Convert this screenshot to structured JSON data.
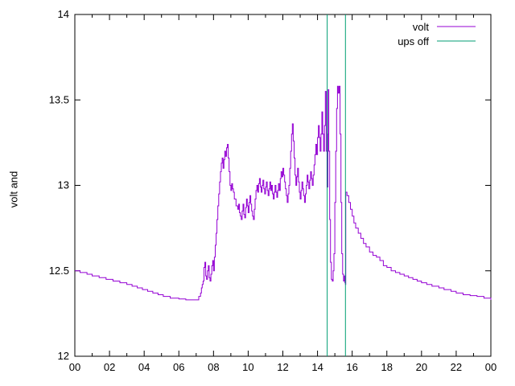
{
  "chart_data": {
    "type": "line",
    "title": "",
    "xlabel": "",
    "ylabel": "volt and",
    "xlim": [
      0,
      24
    ],
    "ylim": [
      12,
      14
    ],
    "grid": false,
    "legend_position": "top-right-inside",
    "background_color": "#ffffff",
    "border_color": "#000000",
    "x_tick_hours": [
      0,
      2,
      4,
      6,
      8,
      10,
      12,
      14,
      16,
      18,
      20,
      22,
      24
    ],
    "x_tick_labels": [
      "00",
      "02",
      "04",
      "06",
      "08",
      "10",
      "12",
      "14",
      "16",
      "18",
      "20",
      "22",
      "00"
    ],
    "x_minor_tick_hours": [
      1,
      3,
      5,
      7,
      9,
      11,
      13,
      15,
      17,
      19,
      21,
      23
    ],
    "y_ticks": [
      12,
      12.5,
      13,
      13.5,
      14
    ],
    "y_tick_labels": [
      "12",
      "12.5",
      "13",
      "13.5",
      "14"
    ],
    "series": [
      {
        "name": "volt",
        "color": "#9400d3",
        "style": "line",
        "points": [
          [
            0.0,
            12.5
          ],
          [
            0.3,
            12.49
          ],
          [
            0.7,
            12.48
          ],
          [
            1.0,
            12.47
          ],
          [
            1.4,
            12.46
          ],
          [
            1.8,
            12.45
          ],
          [
            2.2,
            12.44
          ],
          [
            2.6,
            12.43
          ],
          [
            3.0,
            12.42
          ],
          [
            3.3,
            12.41
          ],
          [
            3.6,
            12.4
          ],
          [
            3.9,
            12.39
          ],
          [
            4.2,
            12.38
          ],
          [
            4.5,
            12.37
          ],
          [
            4.8,
            12.36
          ],
          [
            5.1,
            12.35
          ],
          [
            5.5,
            12.34
          ],
          [
            6.0,
            12.335
          ],
          [
            6.4,
            12.33
          ],
          [
            7.1,
            12.33
          ],
          [
            7.15,
            12.35
          ],
          [
            7.25,
            12.37
          ],
          [
            7.3,
            12.4
          ],
          [
            7.35,
            12.42
          ],
          [
            7.4,
            12.44
          ],
          [
            7.45,
            12.52
          ],
          [
            7.5,
            12.55
          ],
          [
            7.55,
            12.47
          ],
          [
            7.6,
            12.45
          ],
          [
            7.65,
            12.5
          ],
          [
            7.7,
            12.53
          ],
          [
            7.75,
            12.46
          ],
          [
            7.8,
            12.44
          ],
          [
            7.85,
            12.48
          ],
          [
            7.9,
            12.53
          ],
          [
            7.95,
            12.56
          ],
          [
            8.0,
            12.5
          ],
          [
            8.05,
            12.58
          ],
          [
            8.1,
            12.65
          ],
          [
            8.15,
            12.72
          ],
          [
            8.2,
            12.8
          ],
          [
            8.25,
            12.88
          ],
          [
            8.3,
            12.95
          ],
          [
            8.35,
            13.02
          ],
          [
            8.4,
            13.08
          ],
          [
            8.45,
            13.13
          ],
          [
            8.5,
            13.16
          ],
          [
            8.55,
            13.1
          ],
          [
            8.6,
            13.15
          ],
          [
            8.65,
            13.2
          ],
          [
            8.7,
            13.17
          ],
          [
            8.75,
            13.22
          ],
          [
            8.8,
            13.24
          ],
          [
            8.85,
            13.16
          ],
          [
            8.9,
            13.08
          ],
          [
            8.95,
            13.0
          ],
          [
            9.0,
            12.97
          ],
          [
            9.05,
            13.01
          ],
          [
            9.1,
            12.98
          ],
          [
            9.15,
            12.96
          ],
          [
            9.2,
            12.92
          ],
          [
            9.3,
            12.88
          ],
          [
            9.4,
            12.86
          ],
          [
            9.45,
            12.89
          ],
          [
            9.5,
            12.84
          ],
          [
            9.55,
            12.82
          ],
          [
            9.6,
            12.8
          ],
          [
            9.65,
            12.85
          ],
          [
            9.7,
            12.89
          ],
          [
            9.75,
            12.83
          ],
          [
            9.8,
            12.81
          ],
          [
            9.85,
            12.87
          ],
          [
            9.9,
            12.92
          ],
          [
            9.95,
            12.88
          ],
          [
            10.0,
            12.84
          ],
          [
            10.05,
            12.9
          ],
          [
            10.1,
            12.94
          ],
          [
            10.15,
            12.89
          ],
          [
            10.2,
            12.85
          ],
          [
            10.25,
            12.82
          ],
          [
            10.3,
            12.8
          ],
          [
            10.35,
            12.86
          ],
          [
            10.4,
            12.92
          ],
          [
            10.45,
            12.97
          ],
          [
            10.5,
            13.0
          ],
          [
            10.55,
            12.96
          ],
          [
            10.6,
            13.01
          ],
          [
            10.65,
            13.04
          ],
          [
            10.7,
            12.99
          ],
          [
            10.75,
            12.96
          ],
          [
            10.8,
            13.0
          ],
          [
            10.85,
            13.03
          ],
          [
            10.9,
            12.98
          ],
          [
            10.95,
            12.95
          ],
          [
            11.0,
            12.99
          ],
          [
            11.05,
            13.02
          ],
          [
            11.1,
            12.97
          ],
          [
            11.15,
            12.94
          ],
          [
            11.2,
            12.98
          ],
          [
            11.25,
            13.02
          ],
          [
            11.3,
            12.97
          ],
          [
            11.35,
            13.0
          ],
          [
            11.4,
            12.95
          ],
          [
            11.45,
            12.92
          ],
          [
            11.5,
            12.96
          ],
          [
            11.55,
            13.0
          ],
          [
            11.6,
            12.96
          ],
          [
            11.65,
            12.93
          ],
          [
            11.7,
            12.97
          ],
          [
            11.75,
            13.01
          ],
          [
            11.8,
            12.97
          ],
          [
            11.85,
            13.04
          ],
          [
            11.9,
            13.08
          ],
          [
            11.95,
            13.05
          ],
          [
            12.0,
            13.1
          ],
          [
            12.05,
            13.06
          ],
          [
            12.1,
            13.02
          ],
          [
            12.15,
            12.98
          ],
          [
            12.2,
            12.94
          ],
          [
            12.25,
            12.9
          ],
          [
            12.3,
            12.95
          ],
          [
            12.35,
            13.0
          ],
          [
            12.4,
            13.1
          ],
          [
            12.45,
            13.2
          ],
          [
            12.5,
            13.3
          ],
          [
            12.55,
            13.36
          ],
          [
            12.6,
            13.26
          ],
          [
            12.65,
            13.16
          ],
          [
            12.7,
            13.06
          ],
          [
            12.75,
            13.0
          ],
          [
            12.8,
            13.05
          ],
          [
            12.85,
            13.1
          ],
          [
            12.9,
            13.02
          ],
          [
            12.95,
            12.96
          ],
          [
            13.0,
            12.92
          ],
          [
            13.05,
            12.97
          ],
          [
            13.1,
            13.02
          ],
          [
            13.15,
            12.98
          ],
          [
            13.2,
            12.94
          ],
          [
            13.25,
            12.9
          ],
          [
            13.3,
            12.95
          ],
          [
            13.35,
            13.0
          ],
          [
            13.4,
            13.06
          ],
          [
            13.45,
            13.02
          ],
          [
            13.5,
            12.98
          ],
          [
            13.55,
            13.03
          ],
          [
            13.6,
            13.08
          ],
          [
            13.65,
            13.04
          ],
          [
            13.7,
            13.0
          ],
          [
            13.75,
            13.06
          ],
          [
            13.8,
            13.12
          ],
          [
            13.85,
            13.18
          ],
          [
            13.9,
            13.24
          ],
          [
            13.95,
            13.18
          ],
          [
            14.0,
            13.28
          ],
          [
            14.05,
            13.35
          ],
          [
            14.1,
            13.28
          ],
          [
            14.15,
            13.2
          ],
          [
            14.2,
            13.3
          ],
          [
            14.25,
            13.43
          ],
          [
            14.3,
            13.3
          ],
          [
            14.35,
            13.2
          ],
          [
            14.4,
            13.35
          ],
          [
            14.45,
            13.55
          ],
          [
            14.5,
            13.2
          ],
          [
            14.55,
            12.99
          ],
          [
            14.6,
            13.3
          ],
          [
            14.62,
            13.56
          ],
          [
            14.65,
            13.2
          ],
          [
            14.7,
            12.8
          ],
          [
            14.75,
            12.55
          ],
          [
            14.8,
            12.45
          ],
          [
            14.85,
            12.44
          ],
          [
            14.9,
            12.5
          ],
          [
            14.95,
            12.6
          ],
          [
            15.0,
            12.9
          ],
          [
            15.05,
            13.2
          ],
          [
            15.1,
            13.45
          ],
          [
            15.15,
            13.58
          ],
          [
            15.2,
            13.54
          ],
          [
            15.25,
            13.58
          ],
          [
            15.3,
            13.3
          ],
          [
            15.35,
            12.9
          ],
          [
            15.4,
            12.6
          ],
          [
            15.45,
            12.48
          ],
          [
            15.5,
            12.44
          ],
          [
            15.55,
            12.47
          ],
          [
            15.58,
            12.43
          ],
          [
            15.61,
            12.42
          ],
          [
            15.63,
            12.96
          ],
          [
            15.7,
            12.94
          ],
          [
            15.8,
            12.9
          ],
          [
            15.9,
            12.86
          ],
          [
            16.0,
            12.82
          ],
          [
            16.1,
            12.78
          ],
          [
            16.2,
            12.75
          ],
          [
            16.35,
            12.72
          ],
          [
            16.5,
            12.69
          ],
          [
            16.65,
            12.66
          ],
          [
            16.8,
            12.64
          ],
          [
            17.0,
            12.61
          ],
          [
            17.2,
            12.59
          ],
          [
            17.4,
            12.58
          ],
          [
            17.6,
            12.56
          ],
          [
            17.8,
            12.53
          ],
          [
            18.0,
            12.52
          ],
          [
            18.25,
            12.5
          ],
          [
            18.5,
            12.49
          ],
          [
            18.75,
            12.48
          ],
          [
            19.0,
            12.47
          ],
          [
            19.25,
            12.46
          ],
          [
            19.5,
            12.45
          ],
          [
            19.75,
            12.44
          ],
          [
            20.0,
            12.43
          ],
          [
            20.3,
            12.42
          ],
          [
            20.6,
            12.41
          ],
          [
            21.0,
            12.4
          ],
          [
            21.3,
            12.39
          ],
          [
            21.7,
            12.38
          ],
          [
            22.0,
            12.37
          ],
          [
            22.4,
            12.36
          ],
          [
            22.8,
            12.355
          ],
          [
            23.2,
            12.35
          ],
          [
            23.6,
            12.34
          ],
          [
            24.0,
            12.33
          ]
        ]
      },
      {
        "name": "ups off",
        "color": "#009e73",
        "style": "vlines",
        "x_values": [
          14.56,
          15.61
        ]
      }
    ]
  }
}
